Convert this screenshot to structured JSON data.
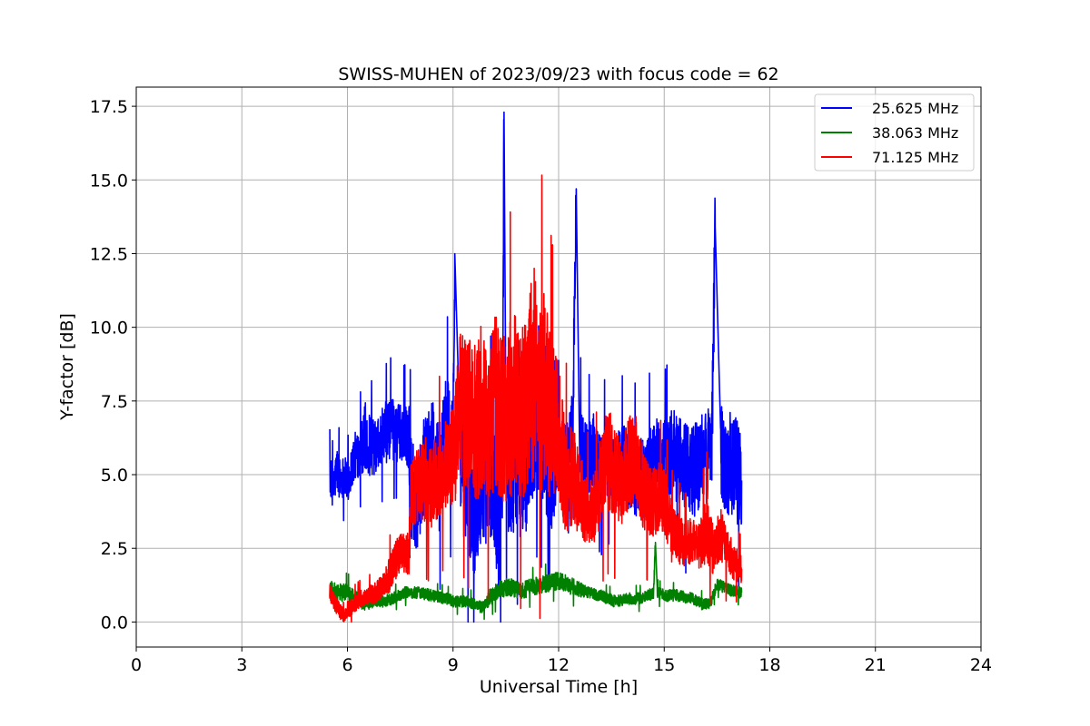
{
  "chart_data": {
    "type": "line",
    "title": "SWISS-MUHEN of 2023/09/23 with focus code = 62",
    "xlabel": "Universal Time [h]",
    "ylabel": "Y-factor [dB]",
    "xlim": [
      0,
      24
    ],
    "ylim": [
      -0.85,
      18.15
    ],
    "xticks": [
      0,
      3,
      6,
      9,
      12,
      15,
      18,
      21,
      24
    ],
    "xtick_labels": [
      "0",
      "3",
      "6",
      "9",
      "12",
      "15",
      "18",
      "21",
      "24"
    ],
    "yticks": [
      0.0,
      2.5,
      5.0,
      7.5,
      10.0,
      12.5,
      15.0,
      17.5
    ],
    "ytick_labels": [
      "0.0",
      "2.5",
      "5.0",
      "7.5",
      "10.0",
      "12.5",
      "15.0",
      "17.5"
    ],
    "grid": true,
    "legend_position": "top-right",
    "series": [
      {
        "name": "25.625 MHz",
        "color": "#0000ff",
        "x": [
          5.5,
          5.6,
          5.7,
          5.8,
          5.9,
          6.0,
          6.2,
          6.4,
          6.5,
          6.6,
          6.8,
          7.0,
          7.2,
          7.4,
          7.6,
          7.75,
          7.8,
          8.0,
          8.2,
          8.4,
          8.6,
          8.8,
          9.0,
          9.05,
          9.2,
          9.4,
          9.6,
          9.8,
          10.0,
          10.2,
          10.3,
          10.4,
          10.45,
          10.5,
          10.6,
          10.8,
          11.0,
          11.2,
          11.4,
          11.6,
          11.8,
          12.0,
          12.2,
          12.4,
          12.5,
          12.6,
          12.8,
          13.0,
          13.2,
          13.4,
          13.6,
          13.8,
          14.0,
          14.2,
          14.4,
          14.6,
          14.8,
          15.0,
          15.2,
          15.4,
          15.6,
          15.8,
          16.0,
          16.2,
          16.35,
          16.45,
          16.6,
          16.8,
          17.0,
          17.2
        ],
        "y": [
          5.0,
          4.5,
          5.2,
          4.8,
          5.0,
          4.7,
          5.6,
          5.9,
          6.3,
          6.0,
          5.9,
          6.3,
          6.6,
          6.4,
          6.5,
          6.2,
          4.5,
          4.0,
          5.5,
          6.2,
          4.8,
          6.5,
          6.0,
          12.5,
          5.5,
          4.2,
          3.8,
          4.5,
          5.0,
          4.4,
          3.2,
          5.5,
          17.3,
          6.0,
          4.8,
          5.3,
          4.5,
          5.8,
          6.2,
          5.5,
          4.9,
          5.8,
          5.5,
          6.5,
          14.7,
          6.0,
          5.4,
          5.8,
          5.1,
          5.6,
          4.9,
          5.5,
          5.2,
          5.0,
          4.8,
          5.2,
          5.6,
          5.4,
          5.8,
          5.5,
          5.2,
          5.0,
          5.4,
          5.6,
          6.0,
          13.4,
          5.8,
          5.4,
          5.2,
          4.8
        ],
        "spread": [
          0.7,
          0.7,
          0.8,
          0.7,
          0.7,
          0.7,
          0.8,
          0.9,
          1.2,
          1.1,
          0.9,
          1.0,
          1.1,
          1.0,
          1.0,
          1.2,
          1.8,
          1.6,
          1.6,
          1.5,
          1.8,
          1.8,
          1.8,
          0.0,
          2.0,
          2.0,
          2.2,
          2.2,
          2.2,
          2.3,
          2.3,
          2.2,
          0.0,
          2.0,
          2.1,
          2.1,
          2.0,
          1.8,
          1.8,
          1.8,
          1.8,
          1.4,
          1.3,
          1.3,
          0.0,
          1.4,
          1.3,
          1.3,
          1.3,
          1.3,
          1.3,
          1.3,
          1.4,
          1.4,
          1.4,
          1.5,
          1.4,
          1.4,
          1.5,
          1.5,
          1.6,
          1.6,
          1.6,
          1.7,
          1.7,
          0.0,
          1.7,
          1.8,
          1.8,
          1.8
        ]
      },
      {
        "name": "38.063 MHz",
        "color": "#008000",
        "x": [
          5.5,
          5.7,
          6.0,
          6.2,
          6.5,
          6.8,
          7.0,
          7.3,
          7.6,
          8.0,
          8.4,
          8.8,
          9.0,
          9.4,
          9.8,
          10.0,
          10.3,
          10.6,
          10.8,
          11.0,
          11.3,
          11.6,
          12.0,
          12.4,
          12.8,
          13.2,
          13.6,
          14.0,
          14.4,
          14.7,
          14.75,
          14.8,
          15.0,
          15.4,
          15.8,
          16.1,
          16.3,
          16.5,
          16.8,
          17.2
        ],
        "y": [
          1.1,
          1.0,
          1.0,
          0.8,
          0.6,
          0.7,
          0.7,
          0.8,
          1.0,
          1.0,
          0.9,
          0.8,
          0.7,
          0.7,
          0.5,
          0.8,
          1.1,
          1.2,
          1.1,
          1.1,
          1.2,
          1.3,
          1.4,
          1.2,
          1.0,
          0.9,
          0.7,
          0.8,
          0.8,
          1.0,
          2.7,
          1.0,
          0.9,
          0.9,
          0.8,
          0.6,
          0.6,
          1.3,
          1.1,
          1.0
        ],
        "spread": [
          0.3,
          0.3,
          0.3,
          0.3,
          0.2,
          0.2,
          0.2,
          0.2,
          0.2,
          0.2,
          0.2,
          0.2,
          0.2,
          0.2,
          0.2,
          0.3,
          0.3,
          0.3,
          0.3,
          0.3,
          0.3,
          0.3,
          0.3,
          0.3,
          0.2,
          0.2,
          0.2,
          0.2,
          0.2,
          0.2,
          0.0,
          0.2,
          0.2,
          0.2,
          0.2,
          0.2,
          0.2,
          0.2,
          0.2,
          0.2
        ]
      },
      {
        "name": "71.125 MHz",
        "color": "#ff0000",
        "x": [
          5.5,
          5.7,
          5.9,
          6.0,
          6.2,
          6.4,
          6.6,
          6.8,
          7.0,
          7.2,
          7.4,
          7.6,
          7.75,
          7.8,
          8.0,
          8.2,
          8.4,
          8.6,
          8.8,
          9.0,
          9.2,
          9.4,
          9.6,
          9.8,
          10.0,
          10.2,
          10.4,
          10.6,
          10.8,
          11.0,
          11.2,
          11.3,
          11.4,
          11.6,
          11.8,
          12.0,
          12.2,
          12.4,
          12.6,
          12.8,
          13.0,
          13.2,
          13.4,
          13.6,
          13.8,
          14.0,
          14.2,
          14.4,
          14.6,
          14.8,
          15.0,
          15.2,
          15.4,
          15.6,
          15.8,
          16.0,
          16.2,
          16.4,
          16.6,
          16.8,
          17.0,
          17.2
        ],
        "y": [
          1.0,
          0.5,
          0.2,
          0.4,
          0.6,
          0.8,
          0.9,
          1.0,
          1.2,
          1.6,
          2.2,
          2.4,
          2.3,
          4.2,
          4.6,
          4.8,
          4.6,
          5.0,
          5.3,
          5.5,
          7.5,
          7.0,
          6.8,
          7.2,
          6.5,
          7.5,
          6.8,
          7.2,
          7.6,
          7.0,
          8.0,
          8.5,
          7.5,
          7.8,
          6.8,
          6.5,
          4.8,
          5.0,
          4.4,
          3.8,
          3.8,
          4.8,
          5.6,
          5.0,
          4.6,
          5.4,
          5.4,
          4.6,
          4.0,
          4.2,
          4.2,
          3.0,
          2.8,
          2.6,
          2.8,
          2.6,
          3.2,
          2.4,
          3.0,
          2.4,
          2.0,
          1.8
        ],
        "spread": [
          0.3,
          0.3,
          0.2,
          0.3,
          0.3,
          0.3,
          0.3,
          0.4,
          0.4,
          0.6,
          0.7,
          0.7,
          0.7,
          1.2,
          1.3,
          1.5,
          1.5,
          1.5,
          1.6,
          1.8,
          2.6,
          2.6,
          2.8,
          3.0,
          2.6,
          3.0,
          2.8,
          3.0,
          3.2,
          3.0,
          3.4,
          3.6,
          3.4,
          3.4,
          2.8,
          2.4,
          1.8,
          1.8,
          1.4,
          1.2,
          1.2,
          1.6,
          1.8,
          1.6,
          1.4,
          1.6,
          1.6,
          1.4,
          1.2,
          1.2,
          1.2,
          1.0,
          0.9,
          0.8,
          0.8,
          0.8,
          1.2,
          0.8,
          0.9,
          0.8,
          0.6,
          0.5
        ]
      }
    ]
  }
}
